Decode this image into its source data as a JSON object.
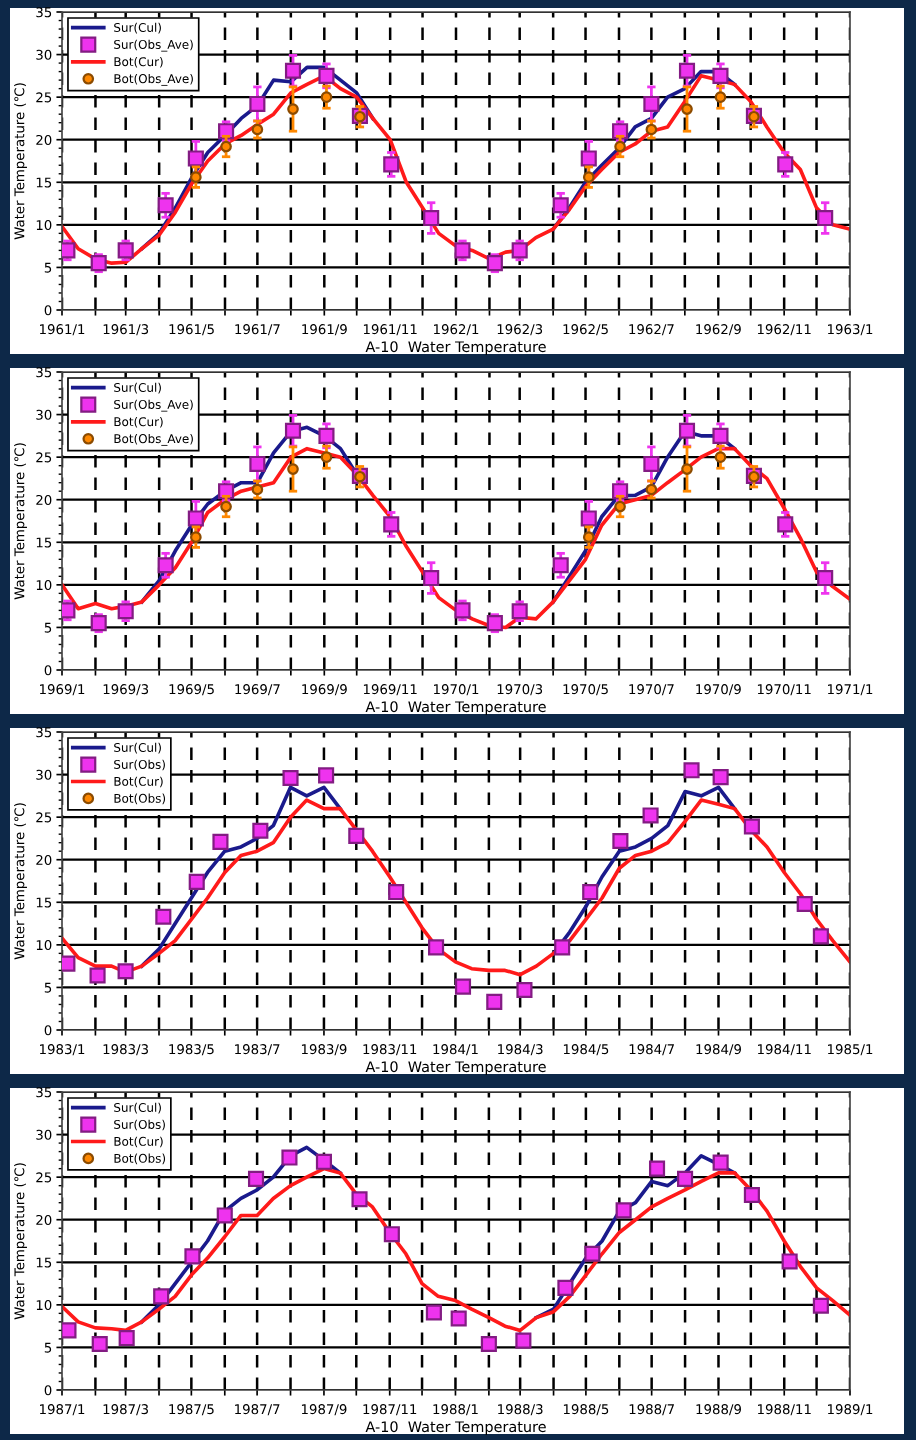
{
  "chart_data": [
    {
      "type": "line",
      "xlabel": "A-10  Water Temperature",
      "ylabel": "Water Temperature (℃)",
      "legend": "top left",
      "grid": true,
      "ylim": [
        0,
        35
      ],
      "yticks": [
        0,
        5,
        10,
        15,
        20,
        25,
        30,
        35
      ],
      "xlim": [
        "1961-01-01",
        "1963-01-01"
      ],
      "xticks": [
        {
          "value": "1961-01",
          "label": "1961/1"
        },
        {
          "value": "1961-02",
          "label": null
        },
        {
          "value": "1961-03",
          "label": "1961/3"
        },
        {
          "value": "1961-04",
          "label": null
        },
        {
          "value": "1961-05",
          "label": "1961/5"
        },
        {
          "value": "1961-06",
          "label": null
        },
        {
          "value": "1961-07",
          "label": "1961/7"
        },
        {
          "value": "1961-08",
          "label": null
        },
        {
          "value": "1961-09",
          "label": "1961/9"
        },
        {
          "value": "1961-10",
          "label": null
        },
        {
          "value": "1961-11",
          "label": "1961/11"
        },
        {
          "value": "1961-12",
          "label": null
        },
        {
          "value": "1962-01",
          "label": "1962/1"
        },
        {
          "value": "1962-02",
          "label": null
        },
        {
          "value": "1962-03",
          "label": "1962/3"
        },
        {
          "value": "1962-04",
          "label": null
        },
        {
          "value": "1962-05",
          "label": "1962/5"
        },
        {
          "value": "1962-06",
          "label": null
        },
        {
          "value": "1962-07",
          "label": "1962/7"
        },
        {
          "value": "1962-08",
          "label": null
        },
        {
          "value": "1962-09",
          "label": "1962/9"
        },
        {
          "value": "1962-10",
          "label": null
        },
        {
          "value": "1962-11",
          "label": "1962/11"
        },
        {
          "value": "1962-12",
          "label": null
        },
        {
          "value": "1963-01",
          "label": "1963/1"
        }
      ],
      "x": [
        "1961-01-01",
        "1961-01-16",
        "1961-02-01",
        "1961-02-16",
        "1961-03-01",
        "1961-03-16",
        "1961-04-01",
        "1961-04-16",
        "1961-05-01",
        "1961-05-16",
        "1961-06-01",
        "1961-06-16",
        "1961-07-01",
        "1961-07-16",
        "1961-08-01",
        "1961-08-16",
        "1961-09-01",
        "1961-09-16",
        "1961-10-01",
        "1961-10-16",
        "1961-11-01",
        "1961-11-16",
        "1961-12-01",
        "1961-12-16",
        "1962-01-01",
        "1962-01-16",
        "1962-02-01",
        "1962-02-16",
        "1962-03-01",
        "1962-03-16",
        "1962-04-01",
        "1962-04-16",
        "1962-05-01",
        "1962-05-16",
        "1962-06-01",
        "1962-06-16",
        "1962-07-01",
        "1962-07-16",
        "1962-08-01",
        "1962-08-16",
        "1962-09-01",
        "1962-09-16",
        "1962-10-01",
        "1962-10-16",
        "1962-11-01",
        "1962-11-16",
        "1962-12-01",
        "1962-12-16",
        "1963-01-01"
      ],
      "series": [
        {
          "name": "Sur(Cul)",
          "color": "#1a1a8c",
          "marker": "none",
          "values": [
            null,
            null,
            null,
            null,
            null,
            7.2,
            9.0,
            12.0,
            15.5,
            18.5,
            20.5,
            22.5,
            24.0,
            27.0,
            26.8,
            28.5,
            28.5,
            27.0,
            25.5,
            22.5,
            null,
            null,
            null,
            null,
            null,
            null,
            null,
            null,
            null,
            null,
            9.5,
            12.0,
            15.0,
            17.0,
            19.0,
            21.5,
            22.5,
            25.0,
            26.0,
            28.0,
            28.0,
            26.5,
            null,
            null,
            null,
            null,
            null,
            null,
            null
          ]
        },
        {
          "name": "Sur(Obs_Ave)",
          "type": "scatter",
          "color": "#ee33ee",
          "marker": "square",
          "x": [
            "1961-01-06",
            "1961-02-04",
            "1961-03-01",
            "1961-04-07",
            "1961-05-05",
            "1961-06-02",
            "1961-07-01",
            "1961-08-03",
            "1961-09-03",
            "1961-10-04",
            "1961-11-02",
            "1961-12-09",
            "1962-01-07",
            "1962-02-06",
            "1962-03-01",
            "1962-04-08",
            "1962-05-04",
            "1962-06-02",
            "1962-07-01",
            "1962-08-03",
            "1962-09-03",
            "1962-10-04",
            "1962-11-02",
            "1962-12-09"
          ],
          "values": [
            7.0,
            5.5,
            7.0,
            12.3,
            17.8,
            21.0,
            24.2,
            28.1,
            27.5,
            22.8,
            17.1,
            10.8,
            7.0,
            5.5,
            7.0,
            12.3,
            17.8,
            21.0,
            24.2,
            28.1,
            27.5,
            22.8,
            17.1,
            10.8
          ],
          "errors": [
            1.1,
            1.0,
            1.1,
            1.4,
            2.0,
            1.1,
            2.0,
            1.8,
            1.4,
            null,
            1.4,
            1.8,
            1.1,
            1.0,
            1.1,
            1.4,
            2.0,
            1.1,
            2.0,
            1.8,
            1.4,
            null,
            1.4,
            1.8
          ]
        },
        {
          "name": "Bot(Cur)",
          "color": "#ff1a1a",
          "marker": "none",
          "values": [
            9.8,
            7.2,
            6.0,
            5.5,
            5.6,
            7.2,
            8.8,
            11.5,
            14.8,
            17.5,
            19.5,
            20.5,
            21.8,
            23.0,
            25.5,
            26.5,
            27.5,
            26.0,
            25.0,
            22.5,
            20.0,
            15.0,
            12.0,
            9.0,
            7.5,
            7.0,
            6.0,
            6.8,
            7.0,
            8.5,
            9.5,
            11.8,
            14.5,
            16.5,
            18.5,
            19.5,
            21.0,
            21.5,
            24.5,
            27.5,
            27.0,
            26.5,
            24.5,
            21.5,
            18.5,
            16.5,
            12.0,
            10.0,
            9.5
          ]
        },
        {
          "name": "Bot(Obs_Ave)",
          "type": "scatter",
          "color": "#ff8800",
          "marker": "circle",
          "x": [
            "1961-05-05",
            "1961-06-02",
            "1961-07-01",
            "1961-08-03",
            "1961-09-03",
            "1961-10-04",
            "1962-05-04",
            "1962-06-02",
            "1962-07-01",
            "1962-08-03",
            "1962-09-03",
            "1962-10-04"
          ],
          "values": [
            15.6,
            19.2,
            21.2,
            23.6,
            25.0,
            22.7,
            15.6,
            19.2,
            21.2,
            23.6,
            25.0,
            22.7
          ],
          "errors": [
            1.2,
            1.2,
            1.0,
            2.6,
            1.3,
            1.2,
            1.2,
            1.2,
            1.0,
            2.6,
            1.3,
            1.2
          ]
        }
      ]
    },
    {
      "type": "line",
      "xlabel": "A-10  Water Temperature",
      "ylabel": "Water Temperature (℃)",
      "legend": "top left",
      "grid": true,
      "ylim": [
        0,
        35
      ],
      "yticks": [
        0,
        5,
        10,
        15,
        20,
        25,
        30,
        35
      ],
      "xlim": [
        "1969-01-01",
        "1971-01-01"
      ],
      "xticks": [
        {
          "value": "1969-01",
          "label": "1969/1"
        },
        {
          "value": "1969-02",
          "label": null
        },
        {
          "value": "1969-03",
          "label": "1969/3"
        },
        {
          "value": "1969-04",
          "label": null
        },
        {
          "value": "1969-05",
          "label": "1969/5"
        },
        {
          "value": "1969-06",
          "label": null
        },
        {
          "value": "1969-07",
          "label": "1969/7"
        },
        {
          "value": "1969-08",
          "label": null
        },
        {
          "value": "1969-09",
          "label": "1969/9"
        },
        {
          "value": "1969-10",
          "label": null
        },
        {
          "value": "1969-11",
          "label": "1969/11"
        },
        {
          "value": "1969-12",
          "label": null
        },
        {
          "value": "1970-01",
          "label": "1970/1"
        },
        {
          "value": "1970-02",
          "label": null
        },
        {
          "value": "1970-03",
          "label": "1970/3"
        },
        {
          "value": "1970-04",
          "label": null
        },
        {
          "value": "1970-05",
          "label": "1970/5"
        },
        {
          "value": "1970-06",
          "label": null
        },
        {
          "value": "1970-07",
          "label": "1970/7"
        },
        {
          "value": "1970-08",
          "label": null
        },
        {
          "value": "1970-09",
          "label": "1970/9"
        },
        {
          "value": "1970-10",
          "label": null
        },
        {
          "value": "1970-11",
          "label": "1970/11"
        },
        {
          "value": "1970-12",
          "label": null
        },
        {
          "value": "1971-01",
          "label": "1971/1"
        }
      ],
      "x": [
        "1969-01-01",
        "1969-01-16",
        "1969-02-01",
        "1969-02-16",
        "1969-03-01",
        "1969-03-16",
        "1969-04-01",
        "1969-04-16",
        "1969-05-01",
        "1969-05-16",
        "1969-06-01",
        "1969-06-16",
        "1969-07-01",
        "1969-07-16",
        "1969-08-01",
        "1969-08-16",
        "1969-09-01",
        "1969-09-16",
        "1969-10-01",
        "1969-10-16",
        "1969-11-01",
        "1969-11-16",
        "1969-12-01",
        "1969-12-16",
        "1970-01-01",
        "1970-01-16",
        "1970-02-01",
        "1970-02-16",
        "1970-03-01",
        "1970-03-16",
        "1970-04-01",
        "1970-04-16",
        "1970-05-01",
        "1970-05-16",
        "1970-06-01",
        "1970-06-16",
        "1970-07-01",
        "1970-07-16",
        "1970-08-01",
        "1970-08-16",
        "1970-09-01",
        "1970-09-16",
        "1970-10-01",
        "1970-10-16",
        "1970-11-01",
        "1970-11-16",
        "1970-12-01",
        "1970-12-16",
        "1971-01-01"
      ],
      "series": [
        {
          "name": "Sur(Cul)",
          "color": "#1a1a8c",
          "marker": "none",
          "values": [
            null,
            null,
            null,
            null,
            null,
            8.0,
            10.5,
            14.0,
            17.0,
            19.5,
            21.0,
            22.0,
            22.0,
            25.5,
            28.0,
            28.5,
            27.5,
            26.0,
            23.0,
            null,
            null,
            null,
            null,
            null,
            null,
            null,
            null,
            null,
            null,
            null,
            8.0,
            11.0,
            14.0,
            18.0,
            20.5,
            20.5,
            21.5,
            25.0,
            28.0,
            27.5,
            27.5,
            26.0,
            null,
            null,
            null,
            null,
            null,
            null,
            null
          ]
        },
        {
          "name": "Sur(Obs_Ave)",
          "type": "scatter",
          "color": "#ee33ee",
          "marker": "square",
          "x": [
            "1969-01-06",
            "1969-02-04",
            "1969-03-01",
            "1969-04-07",
            "1969-05-05",
            "1969-06-02",
            "1969-07-01",
            "1969-08-03",
            "1969-09-03",
            "1969-10-04",
            "1969-11-02",
            "1969-12-09",
            "1970-01-07",
            "1970-02-06",
            "1970-03-01",
            "1970-04-08",
            "1970-05-04",
            "1970-06-02",
            "1970-07-01",
            "1970-08-03",
            "1970-09-03",
            "1970-10-04",
            "1970-11-02",
            "1970-12-09"
          ],
          "values": [
            7.0,
            5.5,
            6.9,
            12.3,
            17.8,
            21.0,
            24.2,
            28.1,
            27.5,
            22.8,
            17.1,
            10.8,
            7.0,
            5.5,
            6.9,
            12.3,
            17.8,
            21.0,
            24.2,
            28.1,
            27.5,
            22.8,
            17.1,
            10.8
          ],
          "errors": [
            1.1,
            1.0,
            1.1,
            1.4,
            2.0,
            1.1,
            2.0,
            1.8,
            1.4,
            null,
            1.4,
            1.8,
            1.1,
            1.0,
            1.1,
            1.4,
            2.0,
            1.1,
            2.0,
            1.8,
            1.4,
            null,
            1.4,
            1.8
          ]
        },
        {
          "name": "Bot(Cur)",
          "color": "#ff1a1a",
          "marker": "none",
          "values": [
            10.0,
            7.2,
            7.8,
            7.2,
            7.5,
            8.0,
            10.0,
            12.0,
            15.0,
            18.5,
            20.0,
            21.0,
            21.5,
            22.0,
            25.0,
            26.0,
            25.5,
            25.0,
            23.0,
            20.5,
            18.0,
            14.5,
            11.5,
            8.5,
            7.0,
            6.0,
            5.2,
            5.0,
            6.2,
            6.0,
            8.0,
            10.5,
            13.0,
            17.0,
            19.5,
            20.0,
            20.5,
            22.0,
            23.5,
            25.0,
            26.0,
            26.0,
            24.0,
            22.5,
            19.0,
            15.5,
            11.5,
            9.8,
            8.3
          ]
        },
        {
          "name": "Bot(Obs_Ave)",
          "type": "scatter",
          "color": "#ff8800",
          "marker": "circle",
          "x": [
            "1969-05-05",
            "1969-06-02",
            "1969-07-01",
            "1969-08-03",
            "1969-09-03",
            "1969-10-04",
            "1970-05-04",
            "1970-06-02",
            "1970-07-01",
            "1970-08-03",
            "1970-09-03",
            "1970-10-04"
          ],
          "values": [
            15.6,
            19.2,
            21.2,
            23.6,
            25.0,
            22.7,
            15.6,
            19.2,
            21.2,
            23.6,
            25.0,
            22.7
          ],
          "errors": [
            1.2,
            1.2,
            1.0,
            2.6,
            1.3,
            1.2,
            1.2,
            1.2,
            1.0,
            2.6,
            1.3,
            1.2
          ]
        }
      ]
    },
    {
      "type": "line",
      "xlabel": "A-10  Water Temperature",
      "ylabel": "Water Temperature (℃)",
      "legend": "top left",
      "grid": true,
      "ylim": [
        0,
        35
      ],
      "yticks": [
        0,
        5,
        10,
        15,
        20,
        25,
        30,
        35
      ],
      "xlim": [
        "1983-01-01",
        "1985-01-01"
      ],
      "xticks": [
        {
          "value": "1983-01",
          "label": "1983/1"
        },
        {
          "value": "1983-02",
          "label": null
        },
        {
          "value": "1983-03",
          "label": "1983/3"
        },
        {
          "value": "1983-04",
          "label": null
        },
        {
          "value": "1983-05",
          "label": "1983/5"
        },
        {
          "value": "1983-06",
          "label": null
        },
        {
          "value": "1983-07",
          "label": "1983/7"
        },
        {
          "value": "1983-08",
          "label": null
        },
        {
          "value": "1983-09",
          "label": "1983/9"
        },
        {
          "value": "1983-10",
          "label": null
        },
        {
          "value": "1983-11",
          "label": "1983/11"
        },
        {
          "value": "1983-12",
          "label": null
        },
        {
          "value": "1984-01",
          "label": "1984/1"
        },
        {
          "value": "1984-02",
          "label": null
        },
        {
          "value": "1984-03",
          "label": "1984/3"
        },
        {
          "value": "1984-04",
          "label": null
        },
        {
          "value": "1984-05",
          "label": "1984/5"
        },
        {
          "value": "1984-06",
          "label": null
        },
        {
          "value": "1984-07",
          "label": "1984/7"
        },
        {
          "value": "1984-08",
          "label": null
        },
        {
          "value": "1984-09",
          "label": "1984/9"
        },
        {
          "value": "1984-10",
          "label": null
        },
        {
          "value": "1984-11",
          "label": "1984/11"
        },
        {
          "value": "1984-12",
          "label": null
        },
        {
          "value": "1985-01",
          "label": "1985/1"
        }
      ],
      "x": [
        "1983-01-01",
        "1983-01-16",
        "1983-02-01",
        "1983-02-16",
        "1983-03-01",
        "1983-03-16",
        "1983-04-01",
        "1983-04-16",
        "1983-05-01",
        "1983-05-16",
        "1983-06-01",
        "1983-06-16",
        "1983-07-01",
        "1983-07-16",
        "1983-08-01",
        "1983-08-16",
        "1983-09-01",
        "1983-09-16",
        "1983-10-01",
        "1983-10-16",
        "1983-11-01",
        "1983-11-16",
        "1983-12-01",
        "1983-12-16",
        "1984-01-01",
        "1984-01-16",
        "1984-02-01",
        "1984-02-16",
        "1984-03-01",
        "1984-03-16",
        "1984-04-01",
        "1984-04-16",
        "1984-05-01",
        "1984-05-16",
        "1984-06-01",
        "1984-06-16",
        "1984-07-01",
        "1984-07-16",
        "1984-08-01",
        "1984-08-16",
        "1984-09-01",
        "1984-09-16",
        "1984-10-01",
        "1984-10-16",
        "1984-11-01",
        "1984-11-16",
        "1984-12-01",
        "1984-12-16",
        "1985-01-01"
      ],
      "series": [
        {
          "name": "Sur(Cul)",
          "color": "#1a1a8c",
          "marker": "none",
          "values": [
            null,
            null,
            null,
            null,
            null,
            7.5,
            9.5,
            12.5,
            15.5,
            18.5,
            21.0,
            21.5,
            22.5,
            24.0,
            28.5,
            27.5,
            28.5,
            26.0,
            null,
            null,
            null,
            null,
            null,
            null,
            null,
            null,
            null,
            null,
            null,
            null,
            9.0,
            11.5,
            14.5,
            18.0,
            21.0,
            21.5,
            22.5,
            24.0,
            28.0,
            27.5,
            28.5,
            26.0,
            null,
            null,
            null,
            null,
            null,
            null,
            null
          ]
        },
        {
          "name": "Sur(Obs)",
          "type": "scatter",
          "color": "#ee33ee",
          "marker": "square",
          "x": [
            "1983-01-06",
            "1983-02-03",
            "1983-03-01",
            "1983-04-05",
            "1983-05-06",
            "1983-05-28",
            "1983-07-04",
            "1983-08-01",
            "1983-09-03",
            "1983-10-01",
            "1983-11-07",
            "1983-12-14",
            "1984-01-08",
            "1984-02-06",
            "1984-03-05",
            "1984-04-09",
            "1984-05-05",
            "1984-06-02",
            "1984-06-30",
            "1984-08-07",
            "1984-09-03",
            "1984-10-02",
            "1984-11-20",
            "1984-12-05"
          ],
          "values": [
            7.8,
            6.4,
            6.9,
            13.3,
            17.4,
            22.1,
            23.4,
            29.6,
            29.9,
            22.8,
            16.2,
            9.7,
            5.1,
            3.3,
            4.7,
            9.7,
            16.2,
            22.2,
            25.2,
            30.5,
            29.7,
            23.9,
            14.8,
            11.0
          ]
        },
        {
          "name": "Bot(Cur)",
          "color": "#ff1a1a",
          "marker": "none",
          "values": [
            10.8,
            8.5,
            7.5,
            7.5,
            6.8,
            7.5,
            9.0,
            10.5,
            13.0,
            15.5,
            18.5,
            20.5,
            21.0,
            22.0,
            25.0,
            27.0,
            26.0,
            26.0,
            23.5,
            21.0,
            18.0,
            15.0,
            12.0,
            9.5,
            8.0,
            7.2,
            7.0,
            7.0,
            6.5,
            7.5,
            9.0,
            10.5,
            13.0,
            15.5,
            19.0,
            20.5,
            21.0,
            22.0,
            24.5,
            27.0,
            26.5,
            26.0,
            23.5,
            21.5,
            18.5,
            16.0,
            13.0,
            10.5,
            8.0
          ]
        },
        {
          "name": "Bot(Obs)",
          "type": "scatter",
          "color": "#ff8800",
          "marker": "circle",
          "values": [
            null,
            null,
            null,
            null,
            null,
            null,
            null,
            null,
            null,
            null,
            null,
            null,
            null,
            null,
            null,
            null,
            null,
            null,
            null,
            null,
            null,
            null,
            null,
            null,
            null,
            null,
            null,
            null,
            null,
            null,
            null,
            null,
            null,
            null,
            null,
            null,
            null,
            null,
            null,
            null,
            null,
            null,
            null,
            null,
            null,
            null,
            null,
            null,
            null
          ]
        }
      ]
    },
    {
      "type": "line",
      "xlabel": "A-10  Water Temperature",
      "ylabel": "Water Temperature (℃)",
      "legend": "top left",
      "grid": true,
      "ylim": [
        0,
        35
      ],
      "yticks": [
        0,
        5,
        10,
        15,
        20,
        25,
        30,
        35
      ],
      "xlim": [
        "1987-01-01",
        "1989-01-01"
      ],
      "xticks": [
        {
          "value": "1987-01",
          "label": "1987/1"
        },
        {
          "value": "1987-02",
          "label": null
        },
        {
          "value": "1987-03",
          "label": "1987/3"
        },
        {
          "value": "1987-04",
          "label": null
        },
        {
          "value": "1987-05",
          "label": "1987/5"
        },
        {
          "value": "1987-06",
          "label": null
        },
        {
          "value": "1987-07",
          "label": "1987/7"
        },
        {
          "value": "1987-08",
          "label": null
        },
        {
          "value": "1987-09",
          "label": "1987/9"
        },
        {
          "value": "1987-10",
          "label": null
        },
        {
          "value": "1987-11",
          "label": "1987/11"
        },
        {
          "value": "1987-12",
          "label": null
        },
        {
          "value": "1988-01",
          "label": "1988/1"
        },
        {
          "value": "1988-02",
          "label": null
        },
        {
          "value": "1988-03",
          "label": "1988/3"
        },
        {
          "value": "1988-04",
          "label": null
        },
        {
          "value": "1988-05",
          "label": "1988/5"
        },
        {
          "value": "1988-06",
          "label": null
        },
        {
          "value": "1988-07",
          "label": "1988/7"
        },
        {
          "value": "1988-08",
          "label": null
        },
        {
          "value": "1988-09",
          "label": "1988/9"
        },
        {
          "value": "1988-10",
          "label": null
        },
        {
          "value": "1988-11",
          "label": "1988/11"
        },
        {
          "value": "1988-12",
          "label": null
        },
        {
          "value": "1989-01",
          "label": "1989/1"
        }
      ],
      "x": [
        "1987-01-01",
        "1987-01-16",
        "1987-02-01",
        "1987-02-16",
        "1987-03-01",
        "1987-03-16",
        "1987-04-01",
        "1987-04-16",
        "1987-05-01",
        "1987-05-16",
        "1987-06-01",
        "1987-06-16",
        "1987-07-01",
        "1987-07-16",
        "1987-08-01",
        "1987-08-16",
        "1987-09-01",
        "1987-09-16",
        "1987-10-01",
        "1987-10-16",
        "1987-11-01",
        "1987-11-16",
        "1987-12-01",
        "1987-12-16",
        "1988-01-01",
        "1988-01-16",
        "1988-02-01",
        "1988-02-16",
        "1988-03-01",
        "1988-03-16",
        "1988-04-01",
        "1988-04-16",
        "1988-05-01",
        "1988-05-16",
        "1988-06-01",
        "1988-06-16",
        "1988-07-01",
        "1988-07-16",
        "1988-08-01",
        "1988-08-16",
        "1988-09-01",
        "1988-09-16",
        "1988-10-01",
        "1988-10-16",
        "1988-11-01",
        "1988-11-16",
        "1988-12-01",
        "1988-12-16",
        "1989-01-01"
      ],
      "series": [
        {
          "name": "Sur(Cul)",
          "color": "#1a1a8c",
          "marker": "none",
          "values": [
            null,
            null,
            null,
            null,
            null,
            8.0,
            10.0,
            12.5,
            15.0,
            17.5,
            21.0,
            22.5,
            23.5,
            25.0,
            27.5,
            28.5,
            27.0,
            25.5,
            null,
            null,
            null,
            null,
            null,
            null,
            null,
            null,
            null,
            null,
            null,
            8.5,
            9.5,
            12.5,
            15.5,
            17.5,
            21.0,
            22.0,
            24.5,
            24.0,
            25.5,
            27.5,
            26.5,
            25.5,
            null,
            null,
            null,
            null,
            null,
            null,
            null
          ]
        },
        {
          "name": "Sur(Obs)",
          "type": "scatter",
          "color": "#ee33ee",
          "marker": "square",
          "x": [
            "1987-01-07",
            "1987-02-05",
            "1987-03-02",
            "1987-04-03",
            "1987-05-02",
            "1987-06-01",
            "1987-06-30",
            "1987-07-31",
            "1987-09-01",
            "1987-10-04",
            "1987-11-03",
            "1987-12-12",
            "1988-01-04",
            "1988-02-01",
            "1988-03-04",
            "1988-04-12",
            "1988-05-07",
            "1988-06-05",
            "1988-07-06",
            "1988-08-01",
            "1988-09-03",
            "1988-10-02",
            "1988-11-06",
            "1988-12-05"
          ],
          "values": [
            7.0,
            5.4,
            6.1,
            11.0,
            15.7,
            20.5,
            24.8,
            27.3,
            26.8,
            22.4,
            18.3,
            9.1,
            8.4,
            5.4,
            5.8,
            12.0,
            16.0,
            21.1,
            26.0,
            24.8,
            26.7,
            22.9,
            15.1,
            9.9
          ]
        },
        {
          "name": "Bot(Cur)",
          "color": "#ff1a1a",
          "marker": "none",
          "values": [
            9.8,
            8.0,
            7.3,
            7.2,
            7.0,
            8.0,
            9.5,
            11.0,
            13.5,
            15.5,
            18.0,
            20.5,
            20.5,
            22.5,
            24.0,
            25.0,
            26.0,
            25.5,
            23.0,
            21.5,
            18.5,
            16.0,
            12.5,
            11.0,
            10.5,
            9.5,
            8.5,
            7.5,
            7.0,
            8.5,
            9.2,
            11.0,
            13.5,
            16.0,
            18.5,
            20.0,
            21.5,
            22.5,
            23.5,
            24.5,
            25.5,
            25.5,
            23.5,
            21.0,
            17.5,
            14.5,
            12.0,
            10.5,
            8.8
          ]
        },
        {
          "name": "Bot(Obs)",
          "type": "scatter",
          "color": "#ff8800",
          "marker": "circle",
          "values": [
            null,
            null,
            null,
            null,
            null,
            null,
            null,
            null,
            null,
            null,
            null,
            null,
            null,
            null,
            null,
            null,
            null,
            null,
            null,
            null,
            null,
            null,
            null,
            null,
            null,
            null,
            null,
            null,
            null,
            null,
            null,
            null,
            null,
            null,
            null,
            null,
            null,
            null,
            null,
            null,
            null,
            null,
            null,
            null,
            null,
            null,
            null,
            null,
            null
          ]
        }
      ]
    }
  ]
}
